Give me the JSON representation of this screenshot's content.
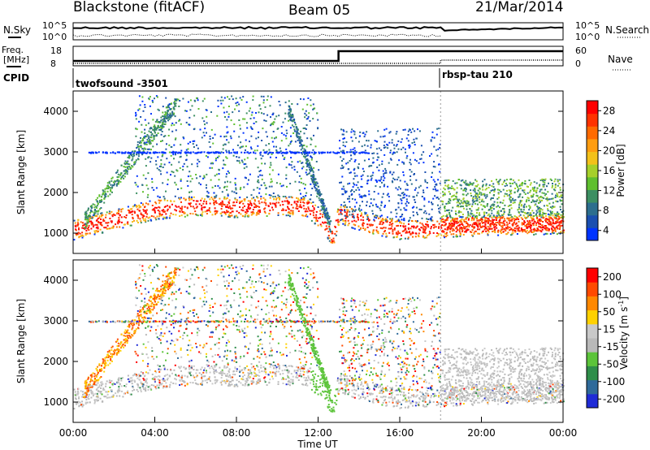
{
  "header": {
    "station": "Blackstone (fitACF)",
    "beam": "Beam 05",
    "date": "21/Mar/2014"
  },
  "strips": {
    "nsky_label": "N.Sky",
    "nsky_ticks": [
      "10^5",
      "10^0"
    ],
    "nsearch_label": "N.Search",
    "nsearch_ticks": [
      "10^5",
      "10^0"
    ],
    "freq_label_1": "Freq.",
    "freq_label_2": "[MHz]",
    "freq_ticks": [
      "18",
      "8"
    ],
    "nave_label": "Nave",
    "nave_ticks": [
      "60",
      "0"
    ],
    "cpid_label": "CPID",
    "cpid_segments": [
      {
        "name": "twofsound  -3501",
        "start_hour": 0
      },
      {
        "name": "rbsp-tau  210",
        "start_hour": 18
      }
    ]
  },
  "colors": {
    "power_scale": [
      "#0033ff",
      "#1a4fb0",
      "#2c6e8e",
      "#3c8f62",
      "#5fbf2f",
      "#a6d02a",
      "#f3c11a",
      "#ff9d10",
      "#ff6a00",
      "#ff3300",
      "#ff0000"
    ],
    "velocity_scale": [
      "#1f2bd6",
      "#2f6a9a",
      "#2f8e4a",
      "#5cc43a",
      "#b9b9b9",
      "#c9c9c9",
      "#ffd100",
      "#ff8800",
      "#ff4a00",
      "#ff0000"
    ]
  },
  "chart_data": [
    {
      "type": "heatmap",
      "panel": "power",
      "ylabel": "Slant Range [km]",
      "ylim": [
        500,
        4500
      ],
      "y_ticks": [
        "4000",
        "3000",
        "2000",
        "1000"
      ],
      "xlim_hours": [
        0,
        24
      ],
      "colorbar": {
        "label": "Power [dB]",
        "range": [
          0,
          30
        ],
        "ticks": [
          "28",
          "24",
          "20",
          "16",
          "12",
          "8",
          "4"
        ]
      },
      "echo_band_center_km": [
        {
          "hour": 0.0,
          "km": 1100
        },
        {
          "hour": 2.0,
          "km": 1350
        },
        {
          "hour": 4.0,
          "km": 1600
        },
        {
          "hour": 6.0,
          "km": 1700
        },
        {
          "hour": 8.0,
          "km": 1650
        },
        {
          "hour": 10.0,
          "km": 1700
        },
        {
          "hour": 11.5,
          "km": 1650
        },
        {
          "hour": 12.3,
          "km": 1250
        },
        {
          "hour": 12.7,
          "km": 900
        },
        {
          "hour": 13.0,
          "km": 1500
        },
        {
          "hour": 14.5,
          "km": 1250
        },
        {
          "hour": 16.0,
          "km": 1100
        },
        {
          "hour": 18.0,
          "km": 1150
        },
        {
          "hour": 20.0,
          "km": 1200
        },
        {
          "hour": 24.0,
          "km": 1250
        }
      ]
    },
    {
      "type": "heatmap",
      "panel": "velocity",
      "ylabel": "Slant Range [km]",
      "xlabel": "Time UT",
      "ylim": [
        500,
        4500
      ],
      "y_ticks": [
        "4000",
        "3000",
        "2000",
        "1000"
      ],
      "xlim_hours": [
        0,
        24
      ],
      "x_ticks": [
        "00:00",
        "04:00",
        "08:00",
        "12:00",
        "16:00",
        "20:00",
        "00:00"
      ],
      "colorbar": {
        "label": "Velocity [m s",
        "label_sup": "-1",
        "label_close": "]",
        "ticks": [
          "200",
          "100",
          "50",
          "15",
          "-15",
          "-50",
          "-100",
          "-200"
        ]
      }
    }
  ]
}
